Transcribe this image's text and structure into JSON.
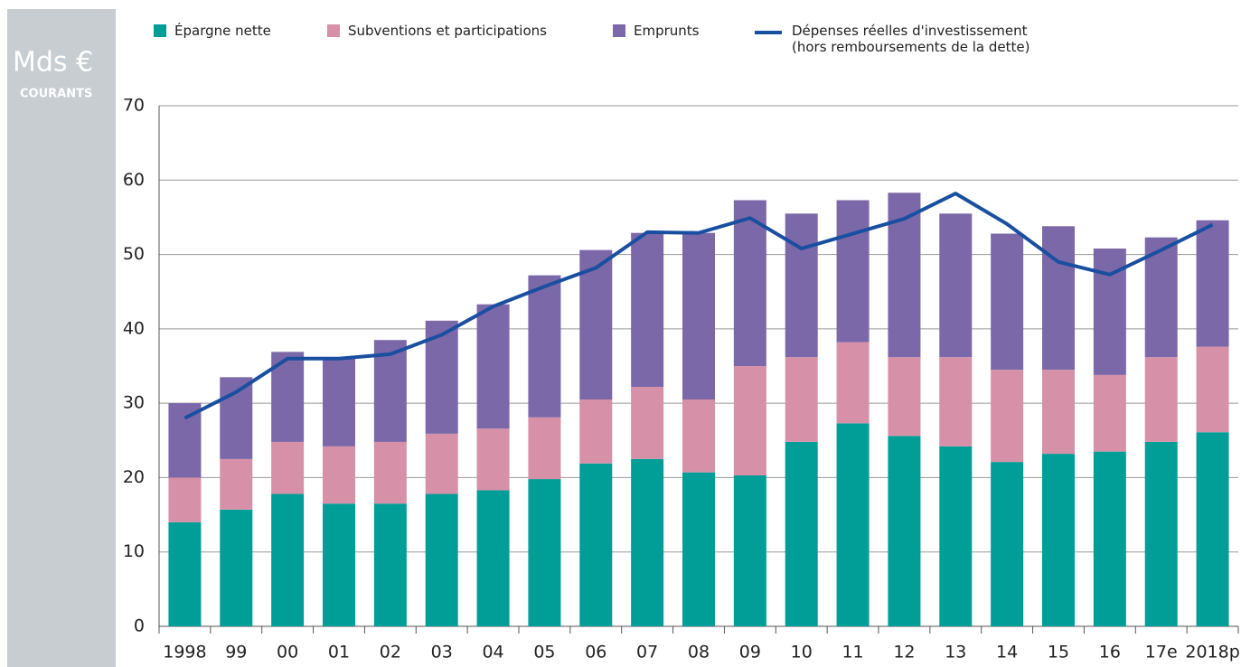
{
  "chart_data": {
    "type": "bar",
    "stacked": true,
    "y_label": "Mds €",
    "y_sublabel": "COURANTS",
    "categories": [
      "1998",
      "99",
      "00",
      "01",
      "02",
      "03",
      "04",
      "05",
      "06",
      "07",
      "08",
      "09",
      "10",
      "11",
      "12",
      "13",
      "14",
      "15",
      "16",
      "17e",
      "2018p"
    ],
    "series": [
      {
        "name": "Épargne nette",
        "color": "#009e96",
        "values": [
          14,
          15.7,
          17.8,
          16.5,
          16.5,
          17.8,
          18.3,
          19.8,
          21.9,
          22.5,
          20.7,
          20.3,
          24.8,
          27.3,
          25.6,
          24.2,
          22.1,
          23.2,
          23.5,
          24.8,
          26.1
        ]
      },
      {
        "name": "Subventions et participations",
        "color": "#d690a8",
        "values": [
          6,
          6.8,
          7,
          7.7,
          8.3,
          8.1,
          8.3,
          8.3,
          8.6,
          9.7,
          9.8,
          14.7,
          11.4,
          10.9,
          10.6,
          12,
          12.4,
          11.3,
          10.3,
          11.4,
          11.5
        ]
      },
      {
        "name": "Emprunts",
        "color": "#7b68a8",
        "values": [
          10,
          11,
          12.1,
          11.8,
          13.7,
          15.2,
          16.7,
          19.1,
          20.1,
          20.7,
          22.4,
          22.3,
          19.3,
          19.1,
          22.1,
          19.3,
          18.3,
          19.3,
          17,
          16.1,
          17
        ]
      },
      {
        "name": "Dépenses réelles d'investissement (hors remboursements de la dette)",
        "type": "line",
        "color": "#1a4fa0",
        "values": [
          28,
          31.5,
          36,
          36,
          36.6,
          39.2,
          43,
          45.7,
          48.2,
          53,
          52.9,
          54.9,
          50.8,
          52.8,
          54.8,
          58.2,
          54.1,
          49,
          47.3,
          50.6,
          54
        ]
      }
    ],
    "ylim": [
      0,
      70
    ],
    "yticks": [
      0,
      10,
      20,
      30,
      40,
      50,
      60,
      70
    ],
    "grid": true
  }
}
